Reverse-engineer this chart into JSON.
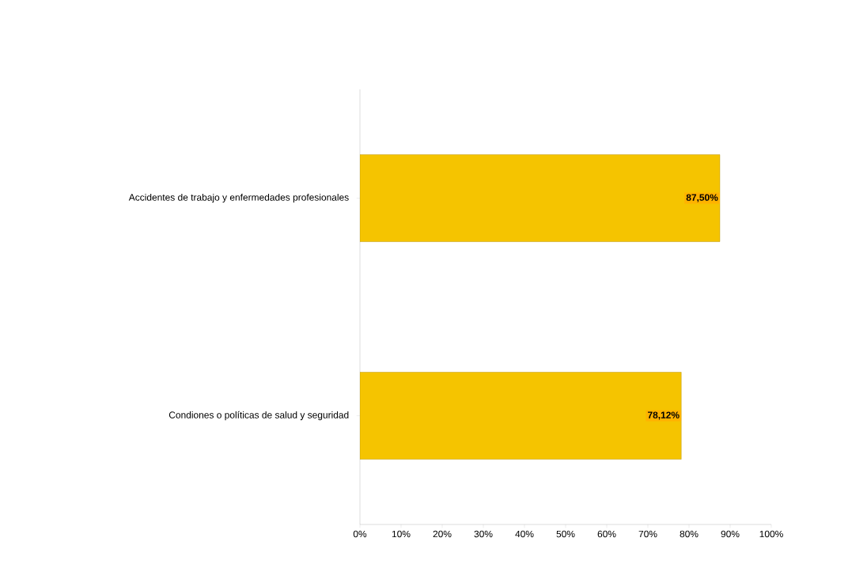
{
  "chart_data": {
    "type": "bar",
    "orientation": "horizontal",
    "categories": [
      "Accidentes de trabajo y enfermedades profesionales",
      "Condiones o políticas de salud y seguridad"
    ],
    "values": [
      87.5,
      78.12
    ],
    "value_labels": [
      "87,50%",
      "78,12%"
    ],
    "color": "#f5c400",
    "xlim": [
      0,
      100
    ],
    "xticks": [
      {
        "value": 0,
        "label": "0%"
      },
      {
        "value": 10,
        "label": "10%"
      },
      {
        "value": 20,
        "label": "20%"
      },
      {
        "value": 30,
        "label": "30%"
      },
      {
        "value": 40,
        "label": "40%"
      },
      {
        "value": 50,
        "label": "50%"
      },
      {
        "value": 60,
        "label": "60%"
      },
      {
        "value": 70,
        "label": "70%"
      },
      {
        "value": 80,
        "label": "80%"
      },
      {
        "value": 90,
        "label": "90%"
      },
      {
        "value": 100,
        "label": "100%"
      }
    ]
  }
}
